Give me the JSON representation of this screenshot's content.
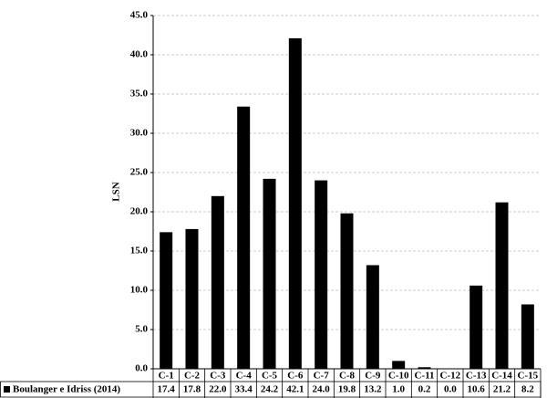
{
  "chart_data": {
    "type": "bar",
    "y_label": "LSN",
    "categories": [
      "C-1",
      "C-2",
      "C-3",
      "C-4",
      "C-5",
      "C-6",
      "C-7",
      "C-8",
      "C-9",
      "C-10",
      "C-11",
      "C-12",
      "C-13",
      "C-14",
      "C-15"
    ],
    "series": [
      {
        "name": "Boulanger e Idriss (2014)",
        "color": "#000000",
        "values": [
          17.4,
          17.8,
          22.0,
          33.4,
          24.2,
          42.1,
          24.0,
          19.8,
          13.2,
          1.0,
          0.2,
          0.0,
          10.6,
          21.2,
          8.2
        ],
        "value_labels": [
          "17.4",
          "17.8",
          "22.0",
          "33.4",
          "24.2",
          "42.1",
          "24.0",
          "19.8",
          "13.2",
          "1.0",
          "0.2",
          "0.0",
          "10.6",
          "21.2",
          "8.2"
        ]
      }
    ],
    "ylim": [
      0,
      45
    ],
    "yticks": [
      {
        "value": 0,
        "label": "0.0"
      },
      {
        "value": 5,
        "label": "5.0"
      },
      {
        "value": 10,
        "label": "10.0"
      },
      {
        "value": 15,
        "label": "15.0"
      },
      {
        "value": 20,
        "label": "20.0"
      },
      {
        "value": 25,
        "label": "25.0"
      },
      {
        "value": 30,
        "label": "30.0"
      },
      {
        "value": 35,
        "label": "35.0"
      },
      {
        "value": 40,
        "label": "40.0"
      },
      {
        "value": 45,
        "label": "45.0"
      }
    ],
    "grid": true
  }
}
